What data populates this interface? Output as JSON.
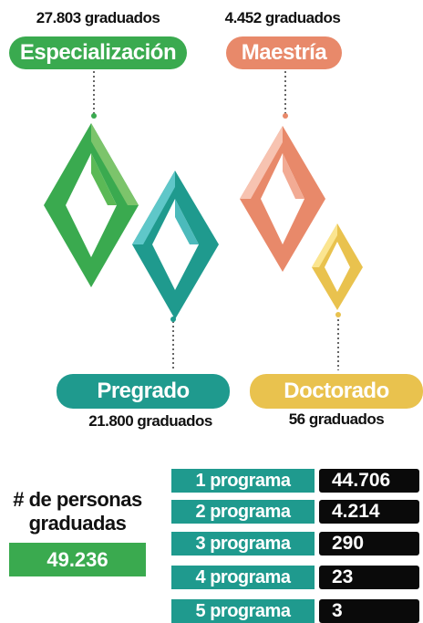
{
  "levels": [
    {
      "name": "Especialización",
      "count": "27.803 graduados"
    },
    {
      "name": "Maestría",
      "count": "4.452 graduados"
    },
    {
      "name": "Pregrado",
      "count": "21.800 graduados"
    },
    {
      "name": "Doctorado",
      "count": "56 graduados"
    }
  ],
  "total": {
    "label": "# de personas graduadas",
    "value": "49.236"
  },
  "programs": [
    {
      "label": "1 programa",
      "value": "44.706"
    },
    {
      "label": "2 programa",
      "value": "4.214"
    },
    {
      "label": "3 programa",
      "value": "290"
    },
    {
      "label": "4 programa",
      "value": "23"
    },
    {
      "label": "5 programa",
      "value": "3"
    }
  ]
}
